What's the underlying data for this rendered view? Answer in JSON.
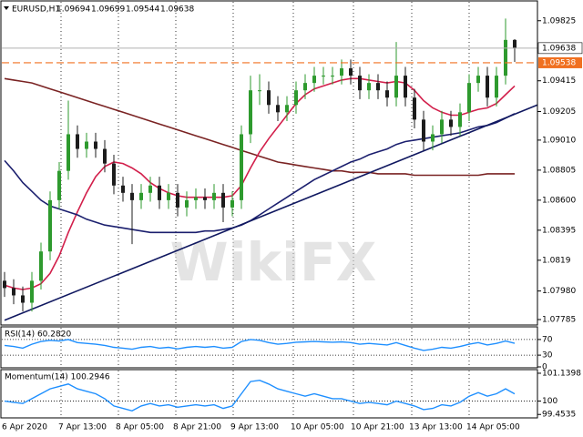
{
  "chart_data": [
    {
      "type": "candlestick",
      "title": "EURUSD,H1",
      "watermark": "WikiFX",
      "up_color": "#2e9a2e",
      "down_color": "#1c1c1c",
      "ylim": [
        1.07754,
        1.09954
      ],
      "yticks": [
        1.09825,
        1.09415,
        1.09205,
        {
          "value": 1.0901,
          "label": "1.09010"
        },
        1.08805,
        {
          "value": 1.086,
          "label": "1.08600"
        },
        1.08395,
        1.0819,
        {
          "value": 1.0798,
          "label": "1.07980"
        },
        1.07785
      ],
      "xlabels": [
        "6 Apr 2020",
        "7 Apr 13:00",
        "8 Apr 05:00",
        "8 Apr 21:00",
        "9 Apr 13:00",
        "10 Apr 05:00",
        "10 Apr 21:00",
        "13 Apr 13:00",
        "14 Apr 05:00"
      ],
      "open": [
        1.0805,
        1.08,
        1.0795,
        1.079,
        1.0805,
        1.0825,
        1.086,
        1.088,
        1.0905,
        1.0895,
        1.09,
        1.0895,
        1.0885,
        1.087,
        1.0865,
        1.086,
        1.0865,
        1.087,
        1.086,
        1.0865,
        1.0855,
        1.086,
        1.0862,
        1.086,
        1.0865,
        1.0855,
        1.086,
        1.0905,
        1.0935,
        1.0935,
        1.0925,
        1.092,
        1.0925,
        1.0935,
        1.094,
        1.0945,
        1.0945,
        1.0945,
        1.095,
        1.0945,
        1.0935,
        1.094,
        1.0935,
        1.093,
        1.0945,
        1.093,
        1.0915,
        1.09,
        1.0905,
        1.0915,
        1.091,
        1.092,
        1.094,
        1.0945,
        1.093,
        1.0945,
        1.09694
      ],
      "high": [
        1.0811,
        1.0806,
        1.0801,
        1.0811,
        1.0831,
        1.0866,
        1.0886,
        1.0928,
        1.0911,
        1.0906,
        1.0906,
        1.0901,
        1.0891,
        1.0876,
        1.0871,
        1.0871,
        1.0876,
        1.0876,
        1.0871,
        1.0871,
        1.0866,
        1.0868,
        1.0868,
        1.0871,
        1.0871,
        1.0866,
        1.0911,
        1.0945,
        1.0946,
        1.0941,
        1.0931,
        1.0931,
        1.0941,
        1.0946,
        1.0951,
        1.0951,
        1.0951,
        1.0956,
        1.0956,
        1.0951,
        1.0946,
        1.0946,
        1.0941,
        1.0968,
        1.0951,
        1.0936,
        1.0921,
        1.0911,
        1.0921,
        1.0921,
        1.0926,
        1.0946,
        1.0951,
        1.0951,
        1.0951,
        1.0984,
        1.09699
      ],
      "low": [
        1.0794,
        1.0789,
        1.0784,
        1.0784,
        1.0799,
        1.0819,
        1.0854,
        1.0874,
        1.0889,
        1.0889,
        1.0889,
        1.0879,
        1.0864,
        1.0859,
        1.083,
        1.0854,
        1.0859,
        1.0854,
        1.0854,
        1.0849,
        1.0849,
        1.0854,
        1.0854,
        1.0854,
        1.0845,
        1.0849,
        1.0854,
        1.0899,
        1.0925,
        1.0919,
        1.0914,
        1.0914,
        1.0919,
        1.0929,
        1.0934,
        1.0939,
        1.0939,
        1.0939,
        1.0939,
        1.0929,
        1.0929,
        1.0929,
        1.0924,
        1.0924,
        1.0924,
        1.0909,
        1.0894,
        1.0894,
        1.0899,
        1.0904,
        1.0904,
        1.0914,
        1.0934,
        1.0924,
        1.0924,
        1.0939,
        1.09544
      ],
      "close": [
        1.08,
        1.0795,
        1.079,
        1.0805,
        1.0825,
        1.086,
        1.088,
        1.0905,
        1.0895,
        1.09,
        1.0895,
        1.0885,
        1.087,
        1.0865,
        1.086,
        1.0865,
        1.087,
        1.086,
        1.0865,
        1.0855,
        1.086,
        1.0862,
        1.086,
        1.0865,
        1.0855,
        1.086,
        1.0905,
        1.0935,
        1.0935,
        1.0925,
        1.092,
        1.0925,
        1.0935,
        1.094,
        1.0945,
        1.0945,
        1.0945,
        1.095,
        1.0945,
        1.0935,
        1.094,
        1.0935,
        1.093,
        1.0945,
        1.093,
        1.0915,
        1.09,
        1.0905,
        1.0915,
        1.091,
        1.092,
        1.094,
        1.0945,
        1.093,
        1.0945,
        1.09694,
        1.09638
      ],
      "series": [
        {
          "color": "#7a2323",
          "values": [
            1.0943,
            1.0942,
            1.0941,
            1.094,
            1.0938,
            1.0936,
            1.0934,
            1.0932,
            1.093,
            1.0928,
            1.0926,
            1.0924,
            1.0922,
            1.092,
            1.0918,
            1.0916,
            1.0914,
            1.0912,
            1.091,
            1.0908,
            1.0906,
            1.0904,
            1.0902,
            1.09,
            1.0898,
            1.0896,
            1.0894,
            1.0892,
            1.089,
            1.0888,
            1.0886,
            1.0885,
            1.0884,
            1.0883,
            1.0882,
            1.0881,
            1.088,
            1.088,
            1.0879,
            1.0879,
            1.0879,
            1.0878,
            1.0878,
            1.0878,
            1.0878,
            1.0877,
            1.0877,
            1.0877,
            1.0877,
            1.0877,
            1.0877,
            1.0877,
            1.0877,
            1.0878,
            1.0878,
            1.0878,
            1.0878
          ]
        },
        {
          "color": "#d21f4b",
          "values": [
            1.0802,
            1.08,
            1.0799,
            1.08,
            1.0803,
            1.081,
            1.0822,
            1.0838,
            1.0852,
            1.0865,
            1.0876,
            1.0883,
            1.0886,
            1.0885,
            1.0882,
            1.0878,
            1.0872,
            1.0868,
            1.0865,
            1.0863,
            1.0862,
            1.0862,
            1.0862,
            1.0862,
            1.0862,
            1.0863,
            1.087,
            1.0882,
            1.0893,
            1.0902,
            1.091,
            1.0918,
            1.0926,
            1.0932,
            1.0936,
            1.0938,
            1.094,
            1.0942,
            1.0943,
            1.0943,
            1.0942,
            1.0941,
            1.094,
            1.0941,
            1.094,
            1.0935,
            1.0928,
            1.0923,
            1.092,
            1.0918,
            1.0918,
            1.092,
            1.0922,
            1.0923,
            1.0926,
            1.0932,
            1.0938
          ]
        },
        {
          "color": "#1b1f6e",
          "values": [
            1.0887,
            1.088,
            1.0872,
            1.0866,
            1.086,
            1.0856,
            1.0854,
            1.0852,
            1.085,
            1.0847,
            1.0845,
            1.0843,
            1.0842,
            1.0841,
            1.084,
            1.0839,
            1.0838,
            1.0838,
            1.0838,
            1.0838,
            1.0838,
            1.0838,
            1.0839,
            1.0839,
            1.084,
            1.0841,
            1.0843,
            1.0846,
            1.085,
            1.0854,
            1.0858,
            1.0862,
            1.0866,
            1.087,
            1.0874,
            1.0877,
            1.088,
            1.0883,
            1.0886,
            1.0888,
            1.0891,
            1.0893,
            1.0895,
            1.0898,
            1.09,
            1.0901,
            1.0902,
            1.0903,
            1.0904,
            1.0905,
            1.0906,
            1.0908,
            1.091,
            1.0911,
            1.0913,
            1.0916,
            1.0919
          ]
        }
      ],
      "trendlines": [
        {
          "color": "#101860",
          "x": [
            0,
            58.5
          ],
          "values": [
            1.0778,
            1.0925
          ]
        }
      ],
      "hlines": [
        {
          "value": 1.09538,
          "color": "#f07020"
        }
      ]
    },
    {
      "type": "line",
      "title": "RSI(14) 60.2820",
      "color": "#1e8fff",
      "ylim": [
        0,
        100
      ],
      "yticks": [
        70,
        30,
        0
      ],
      "levels": [
        70,
        30
      ],
      "values": [
        55,
        52,
        48,
        58,
        65,
        68,
        66,
        70,
        62,
        60,
        58,
        55,
        50,
        48,
        45,
        50,
        52,
        48,
        50,
        46,
        50,
        52,
        50,
        52,
        48,
        50,
        65,
        70,
        68,
        62,
        58,
        60,
        63,
        64,
        65,
        64,
        63,
        64,
        62,
        58,
        60,
        58,
        56,
        62,
        55,
        48,
        42,
        45,
        50,
        48,
        52,
        58,
        62,
        56,
        60,
        66,
        60.282
      ]
    },
    {
      "type": "line",
      "title": "Momentum(14) 100.2946",
      "color": "#1e8fff",
      "ylim": [
        99.35,
        101.25
      ],
      "yticks": [
        101.1398,
        100,
        99.4535
      ],
      "levels": [
        100
      ],
      "values": [
        100.0,
        99.95,
        99.9,
        100.1,
        100.3,
        100.5,
        100.6,
        100.7,
        100.5,
        100.4,
        100.3,
        100.1,
        99.8,
        99.7,
        99.6,
        99.8,
        99.9,
        99.8,
        99.85,
        99.75,
        99.8,
        99.85,
        99.8,
        99.85,
        99.7,
        99.8,
        100.3,
        100.8,
        100.85,
        100.7,
        100.5,
        100.4,
        100.3,
        100.2,
        100.3,
        100.2,
        100.1,
        100.1,
        100.0,
        99.9,
        99.95,
        99.9,
        99.85,
        100.0,
        99.9,
        99.8,
        99.65,
        99.7,
        99.85,
        99.8,
        99.95,
        100.2,
        100.35,
        100.2,
        100.3,
        100.5,
        100.2946
      ]
    }
  ]
}
